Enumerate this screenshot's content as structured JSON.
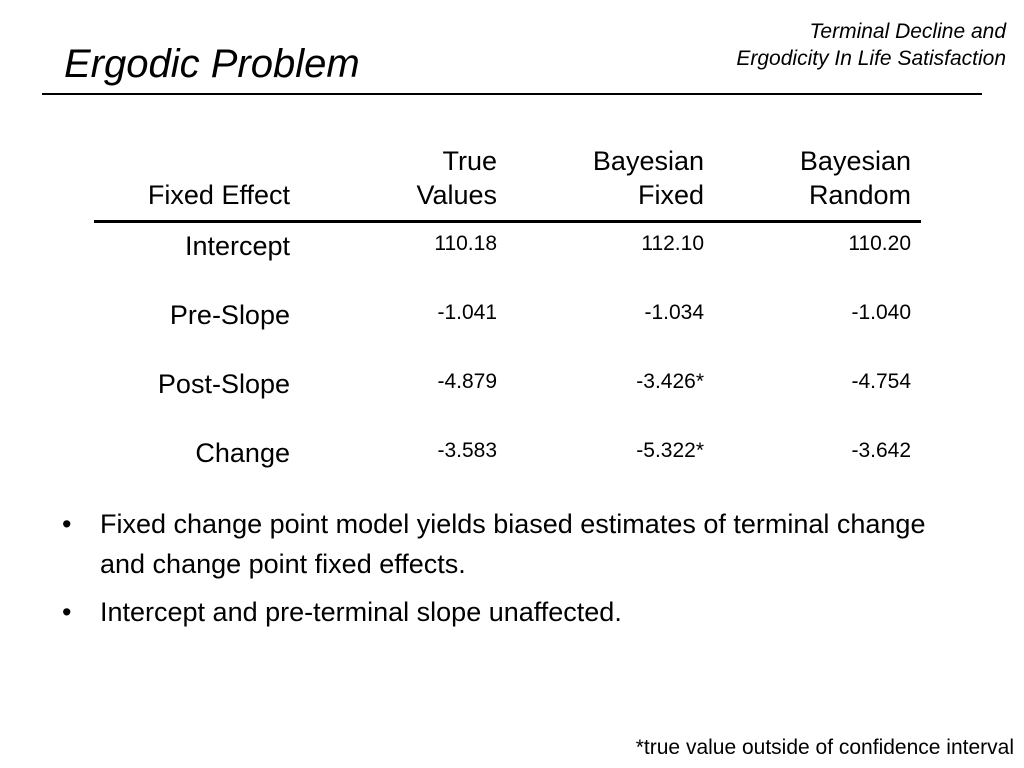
{
  "slide": {
    "title": "Ergodic Problem",
    "header_note": {
      "line1": "Terminal Decline and",
      "line2": "Ergodicity In Life Satisfaction"
    }
  },
  "table": {
    "headers": {
      "fixed_effect": [
        "",
        "Fixed Effect"
      ],
      "true_values": [
        "True",
        "Values"
      ],
      "bayesian_fixed": [
        "Bayesian",
        "Fixed"
      ],
      "bayesian_random": [
        "Bayesian",
        "Random"
      ]
    },
    "rows": [
      {
        "label": "Intercept",
        "true_values": "110.18",
        "bayesian_fixed": "112.10",
        "bayesian_random": "110.20"
      },
      {
        "label": "Pre-Slope",
        "true_values": "-1.041",
        "bayesian_fixed": "-1.034",
        "bayesian_random": "-1.040"
      },
      {
        "label": "Post-Slope",
        "true_values": "-4.879",
        "bayesian_fixed": "-3.426*",
        "bayesian_random": "-4.754"
      },
      {
        "label": "Change",
        "true_values": "-3.583",
        "bayesian_fixed": "-5.322*",
        "bayesian_random": "-3.642"
      }
    ]
  },
  "bullets": {
    "mark": "•",
    "items": [
      "Fixed change point model yields biased estimates of terminal change and change point fixed effects.",
      "Intercept and pre-terminal slope unaffected."
    ]
  },
  "footnote": "*true value outside of confidence interval"
}
